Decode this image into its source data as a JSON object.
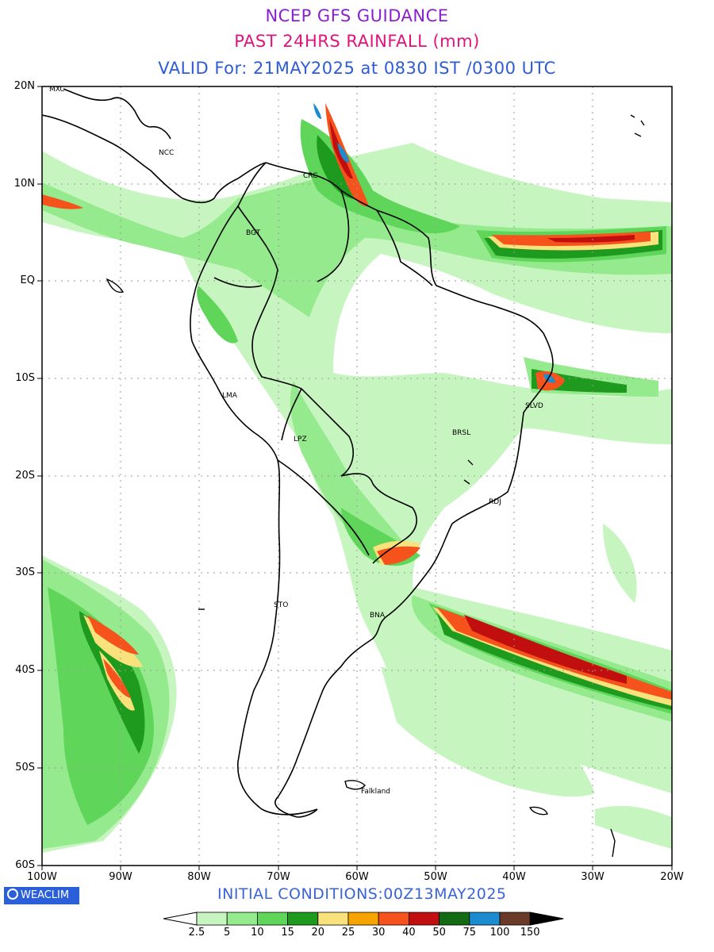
{
  "header": {
    "line1": "NCEP GFS GUIDANCE",
    "line2": "PAST 24HRS RAINFALL (mm)",
    "line3": "VALID For: 21MAY2025 at 0830 IST /0300 UTC"
  },
  "map": {
    "lat_labels": [
      "20N",
      "10N",
      "EQ",
      "10S",
      "20S",
      "30S",
      "40S",
      "50S",
      "60S"
    ],
    "lon_labels": [
      "100W",
      "90W",
      "80W",
      "70W",
      "60W",
      "50W",
      "40W",
      "30W",
      "20W"
    ],
    "cities": [
      {
        "name": "MXC"
      },
      {
        "name": "NCC"
      },
      {
        "name": "CRC"
      },
      {
        "name": "BGT"
      },
      {
        "name": "LMA"
      },
      {
        "name": "LPZ"
      },
      {
        "name": "BRSL"
      },
      {
        "name": "SLVD"
      },
      {
        "name": "RDJ"
      },
      {
        "name": "STO"
      },
      {
        "name": "BNA"
      },
      {
        "name": "Falkland"
      }
    ],
    "colors": {
      "land_border": "#000000",
      "grid": "#9a9a9a"
    }
  },
  "footer": {
    "brand": "WEACLIM",
    "brand_icon": "copyright-circle-icon",
    "initial_conditions": "INITIAL CONDITIONS:00Z13MAY2025"
  },
  "legend": {
    "labels": [
      "2.5",
      "5",
      "10",
      "15",
      "20",
      "25",
      "30",
      "40",
      "50",
      "75",
      "100",
      "150"
    ],
    "colors": [
      "#ffffff",
      "#c6f5c0",
      "#94ea8c",
      "#5fd65a",
      "#1e9a1e",
      "#f9e27c",
      "#f7a300",
      "#f5521c",
      "#c10f0f",
      "#126b12",
      "#1a8ccf",
      "#6a3a28",
      "#000000"
    ]
  }
}
